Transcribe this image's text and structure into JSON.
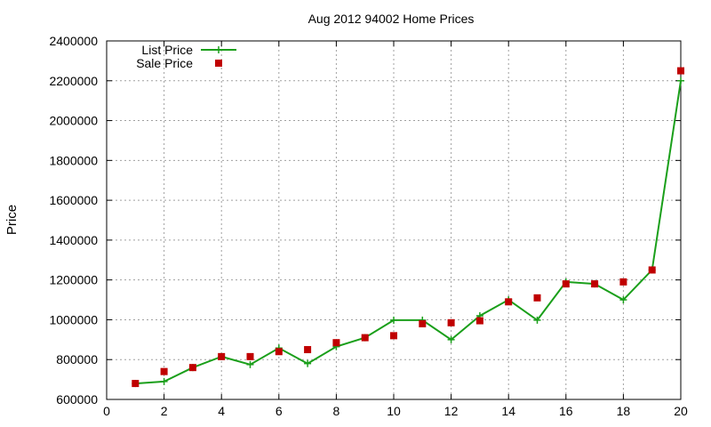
{
  "chart_data": {
    "type": "line",
    "title": "Aug 2012 94002 Home Prices",
    "xlabel": "",
    "ylabel": "Price",
    "xlim": [
      0,
      20
    ],
    "ylim": [
      600000,
      2400000
    ],
    "xticks": [
      0,
      2,
      4,
      6,
      8,
      10,
      12,
      14,
      16,
      18,
      20
    ],
    "yticks": [
      600000,
      800000,
      1000000,
      1200000,
      1400000,
      1600000,
      1800000,
      2000000,
      2200000,
      2400000
    ],
    "grid": true,
    "legend_position": "top-left",
    "series": [
      {
        "name": "List Price",
        "style": "line+plus",
        "color": "#1a9f1a",
        "x": [
          1,
          2,
          3,
          4,
          5,
          6,
          7,
          8,
          9,
          10,
          11,
          12,
          13,
          14,
          15,
          16,
          17,
          18,
          19,
          20
        ],
        "y": [
          680000,
          690000,
          760000,
          815000,
          775000,
          858000,
          780000,
          865000,
          910000,
          998000,
          998000,
          900000,
          1020000,
          1100000,
          998000,
          1190000,
          1180000,
          1100000,
          1250000,
          2200000
        ]
      },
      {
        "name": "Sale Price",
        "style": "square",
        "color": "#c00000",
        "x": [
          1,
          2,
          3,
          4,
          5,
          6,
          7,
          8,
          9,
          10,
          11,
          12,
          13,
          14,
          15,
          16,
          17,
          18,
          19,
          20
        ],
        "y": [
          680000,
          740000,
          760000,
          815000,
          815000,
          840000,
          850000,
          885000,
          910000,
          920000,
          980000,
          985000,
          995000,
          1090000,
          1110000,
          1180000,
          1180000,
          1190000,
          1250000,
          2250000
        ]
      }
    ]
  }
}
